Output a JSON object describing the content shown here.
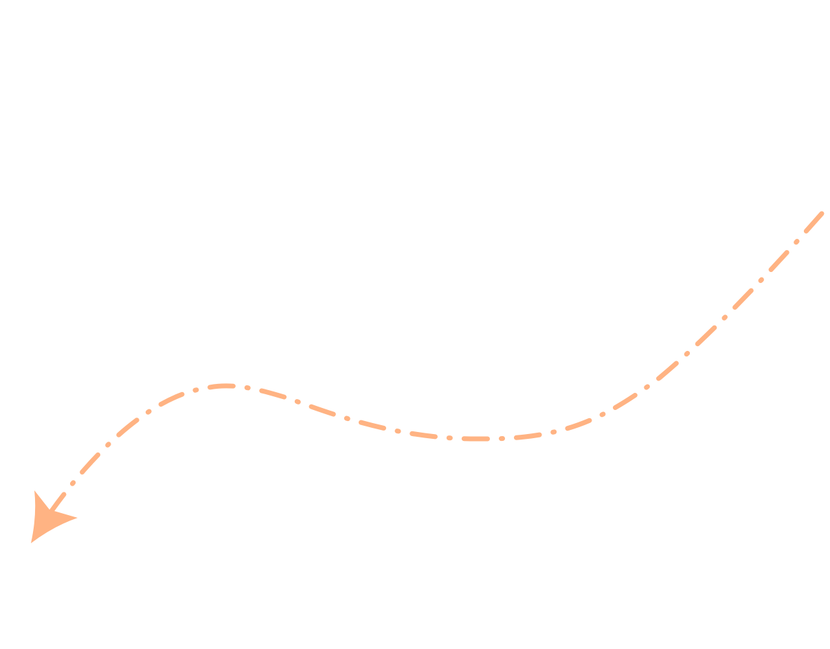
{
  "graphic": {
    "name": "dash-dot-curved-arrow",
    "direction": "right-to-left",
    "line_style": "dash-dot",
    "color": "#FFB383",
    "background": "#FFFFFF"
  }
}
